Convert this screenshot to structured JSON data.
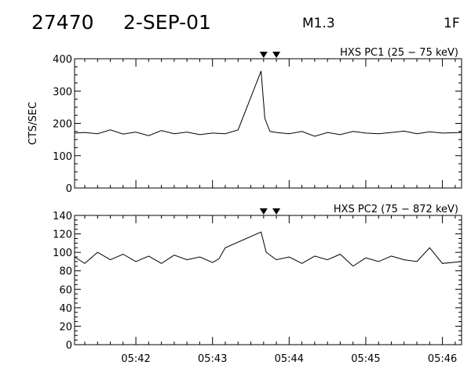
{
  "header": {
    "event_id": "27470",
    "date": "2-SEP-01",
    "goes_class": "M1.3",
    "flag": "1F"
  },
  "chart_data": [
    {
      "type": "line",
      "title": "HXS PC1 (25 − 75 keV)",
      "ylabel": "CTS/SEC",
      "xlabel": "",
      "ylim": [
        0,
        400
      ],
      "yticks": [
        0,
        100,
        200,
        300,
        400
      ],
      "xlim": [
        "05:41:12",
        "05:46:15"
      ],
      "xtick_labels": [
        "05:42",
        "05:43",
        "05:44",
        "05:45",
        "05:46"
      ],
      "markers": [
        "05:43:40",
        "05:43:50"
      ],
      "grid": false,
      "series": [
        {
          "points": [
            [
              "05:41:12",
              170
            ],
            [
              "05:41:20",
              172
            ],
            [
              "05:41:30",
              168
            ],
            [
              "05:41:40",
              180
            ],
            [
              "05:41:50",
              167
            ],
            [
              "05:42:00",
              173
            ],
            [
              "05:42:10",
              162
            ],
            [
              "05:42:20",
              178
            ],
            [
              "05:42:30",
              168
            ],
            [
              "05:42:40",
              173
            ],
            [
              "05:42:50",
              165
            ],
            [
              "05:43:00",
              170
            ],
            [
              "05:43:10",
              168
            ],
            [
              "05:43:20",
              180
            ],
            [
              "05:43:38",
              362
            ],
            [
              "05:43:41",
              215
            ],
            [
              "05:43:45",
              175
            ],
            [
              "05:43:50",
              172
            ],
            [
              "05:44:00",
              168
            ],
            [
              "05:44:10",
              175
            ],
            [
              "05:44:20",
              160
            ],
            [
              "05:44:30",
              172
            ],
            [
              "05:44:40",
              165
            ],
            [
              "05:44:50",
              175
            ],
            [
              "05:45:00",
              170
            ],
            [
              "05:45:10",
              168
            ],
            [
              "05:45:20",
              172
            ],
            [
              "05:45:30",
              176
            ],
            [
              "05:45:40",
              168
            ],
            [
              "05:45:50",
              174
            ],
            [
              "05:46:00",
              170
            ],
            [
              "05:46:15",
              172
            ]
          ]
        }
      ]
    },
    {
      "type": "line",
      "title": "HXS PC2 (75 − 872 keV)",
      "ylabel": "",
      "xlabel": "",
      "ylim": [
        0,
        140
      ],
      "yticks": [
        0,
        20,
        40,
        60,
        80,
        100,
        120,
        140
      ],
      "xlim": [
        "05:41:12",
        "05:46:15"
      ],
      "xtick_labels": [
        "05:42",
        "05:43",
        "05:44",
        "05:45",
        "05:46"
      ],
      "markers": [
        "05:43:40",
        "05:43:50"
      ],
      "grid": false,
      "series": [
        {
          "points": [
            [
              "05:41:12",
              95
            ],
            [
              "05:41:20",
              88
            ],
            [
              "05:41:30",
              100
            ],
            [
              "05:41:40",
              92
            ],
            [
              "05:41:50",
              98
            ],
            [
              "05:42:00",
              90
            ],
            [
              "05:42:10",
              96
            ],
            [
              "05:42:20",
              88
            ],
            [
              "05:42:30",
              97
            ],
            [
              "05:42:40",
              92
            ],
            [
              "05:42:50",
              95
            ],
            [
              "05:43:00",
              89
            ],
            [
              "05:43:05",
              93
            ],
            [
              "05:43:10",
              105
            ],
            [
              "05:43:38",
              122
            ],
            [
              "05:43:42",
              100
            ],
            [
              "05:43:50",
              92
            ],
            [
              "05:44:00",
              95
            ],
            [
              "05:44:10",
              88
            ],
            [
              "05:44:20",
              96
            ],
            [
              "05:44:30",
              92
            ],
            [
              "05:44:40",
              98
            ],
            [
              "05:44:50",
              85
            ],
            [
              "05:45:00",
              94
            ],
            [
              "05:45:10",
              90
            ],
            [
              "05:45:20",
              96
            ],
            [
              "05:45:30",
              92
            ],
            [
              "05:45:40",
              90
            ],
            [
              "05:45:50",
              105
            ],
            [
              "05:46:00",
              88
            ],
            [
              "05:46:15",
              90
            ]
          ]
        }
      ]
    }
  ]
}
